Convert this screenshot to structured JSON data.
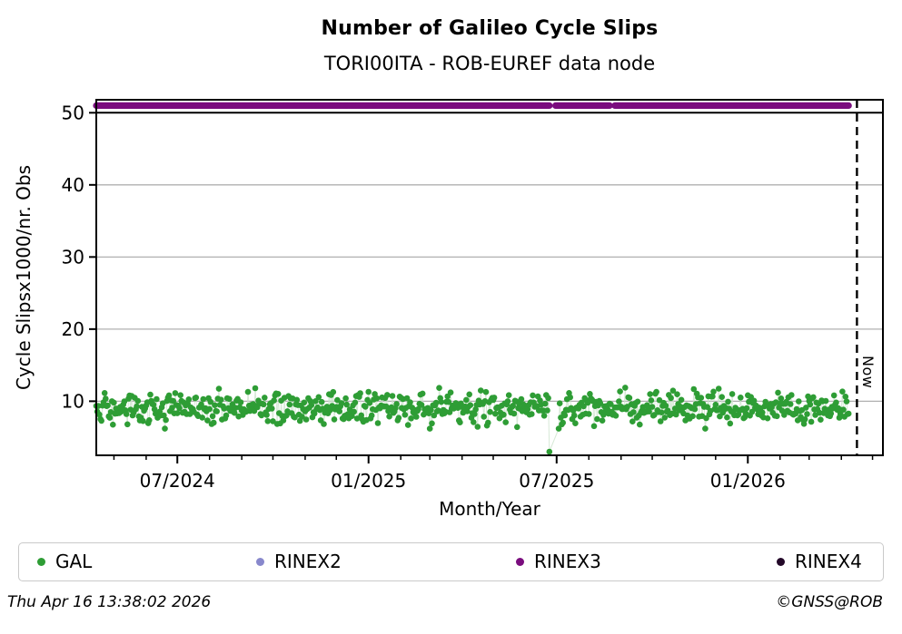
{
  "header": {
    "title": "Number of Galileo Cycle Slips",
    "subtitle": "TORI00ITA - ROB-EUREF data node"
  },
  "footer": {
    "generated": "Thu Apr 16 13:38:02 2026",
    "copyright": "©GNSS@ROB"
  },
  "legend": {
    "items": [
      {
        "label": "GAL",
        "color": "#2e9d35"
      },
      {
        "label": "RINEX2",
        "color": "#8888cc"
      },
      {
        "label": "RINEX3",
        "color": "#7a0d7e"
      },
      {
        "label": "RINEX4",
        "color": "#230829"
      }
    ]
  },
  "chart_data": {
    "type": "scatter",
    "title": "Number of Galileo Cycle Slips",
    "subtitle": "TORI00ITA - ROB-EUREF data node",
    "xlabel": "Month/Year",
    "ylabel": "Cycle Slipsx1000/nr. Obs",
    "x_range": [
      "2024-04-14",
      "2026-05-11"
    ],
    "y_range": [
      2.5,
      51.8
    ],
    "y_ticks": [
      {
        "value": 10,
        "label": "10"
      },
      {
        "value": 20,
        "label": "20"
      },
      {
        "value": 30,
        "label": "30"
      },
      {
        "value": 40,
        "label": "40"
      },
      {
        "value": 50,
        "label": "50"
      }
    ],
    "x_ticks": [
      {
        "date": "2024-07-01",
        "label": "07/2024"
      },
      {
        "date": "2025-01-01",
        "label": "01/2025"
      },
      {
        "date": "2025-07-01",
        "label": "07/2025"
      },
      {
        "date": "2026-01-01",
        "label": "01/2026"
      }
    ],
    "minor_x_tick_interval": "1 month",
    "grid": {
      "horizontal": true,
      "color": "#b0b0b0",
      "emphasized_line_value": 50,
      "emphasized_line_color": "#000000"
    },
    "now_marker": {
      "date": "2026-04-16",
      "label": "Now"
    },
    "series": [
      {
        "name": "GAL",
        "color": "#2e9d35",
        "connector_color": "#cde3cd",
        "marker_radius": 3.3,
        "type": "daily-random-scatter",
        "start": "2024-04-14",
        "end": "2026-04-08",
        "mean": 9.1,
        "std": 1.15,
        "min": 6.2,
        "max": 12.6,
        "seed": 20260416,
        "gaps": [
          [
            "2025-06-25",
            "2025-07-02"
          ]
        ],
        "explicit_points": {
          "2025-06-24": 3.0,
          "2025-07-03": 6.2
        }
      },
      {
        "name": "RINEX2",
        "color": "#8888cc",
        "type": "daily-constant-band",
        "value": null,
        "segments": []
      },
      {
        "name": "RINEX3",
        "color": "#7a0d7e",
        "marker_radius": 3.6,
        "type": "daily-constant-band",
        "value": 51,
        "segments": [
          [
            "2024-04-14",
            "2025-06-24"
          ],
          [
            "2025-06-30",
            "2025-08-21"
          ],
          [
            "2025-08-26",
            "2026-04-08"
          ]
        ]
      },
      {
        "name": "RINEX4",
        "color": "#230829",
        "type": "daily-constant-band",
        "value": null,
        "segments": []
      }
    ]
  }
}
